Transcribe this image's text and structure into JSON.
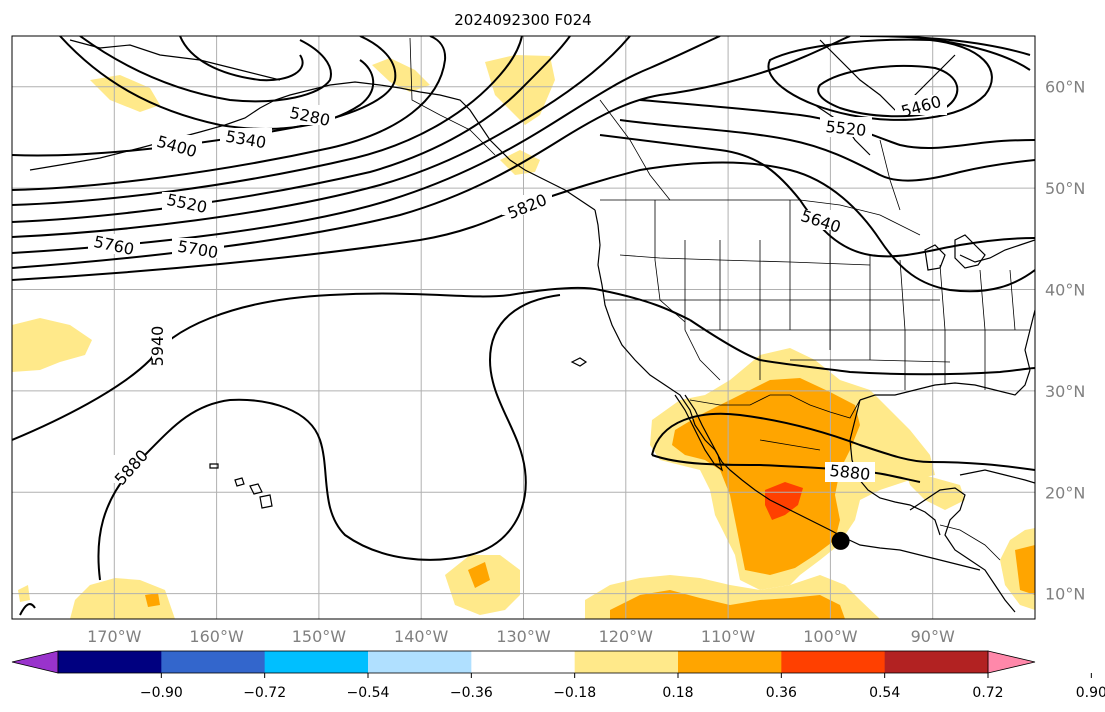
{
  "title": "2024092300 F024",
  "map": {
    "lon_range": [
      -180,
      -80
    ],
    "lat_range": [
      7.5,
      65
    ],
    "lat_labels": [
      {
        "lat": 60,
        "text": "60°N"
      },
      {
        "lat": 50,
        "text": "50°N"
      },
      {
        "lat": 40,
        "text": "40°N"
      },
      {
        "lat": 30,
        "text": "30°N"
      },
      {
        "lat": 20,
        "text": "20°N"
      },
      {
        "lat": 10,
        "text": "10°N"
      }
    ],
    "lon_labels": [
      {
        "lon": -170,
        "text": "170°W"
      },
      {
        "lon": -160,
        "text": "160°W"
      },
      {
        "lon": -150,
        "text": "150°W"
      },
      {
        "lon": -140,
        "text": "140°W"
      },
      {
        "lon": -130,
        "text": "130°W"
      },
      {
        "lon": -120,
        "text": "120°W"
      },
      {
        "lon": -110,
        "text": "110°W"
      },
      {
        "lon": -100,
        "text": "100°W"
      },
      {
        "lon": -90,
        "text": "90°W"
      }
    ],
    "contour_labels": [
      {
        "text": "5280"
      },
      {
        "text": "5340"
      },
      {
        "text": "5400"
      },
      {
        "text": "5520"
      },
      {
        "text": "5760"
      },
      {
        "text": "5700"
      },
      {
        "text": "5820"
      },
      {
        "text": "5940"
      },
      {
        "text": "5880"
      },
      {
        "text": "5880"
      },
      {
        "text": "5460"
      },
      {
        "text": "5520"
      },
      {
        "text": "5640"
      }
    ],
    "marker": {
      "lon": -99,
      "lat": 15.2
    }
  },
  "colorbar": {
    "colors": [
      "#9933cc",
      "#000080",
      "#3366cc",
      "#00bfff",
      "#b0e0ff",
      "#ffffff",
      "#ffe98a",
      "#ffa500",
      "#ff4000",
      "#b22222",
      "#ff88aa"
    ],
    "ticks": [
      "−0.90",
      "−0.72",
      "−0.54",
      "−0.36",
      "−0.18",
      "0.18",
      "0.36",
      "0.54",
      "0.72",
      "0.90"
    ]
  }
}
